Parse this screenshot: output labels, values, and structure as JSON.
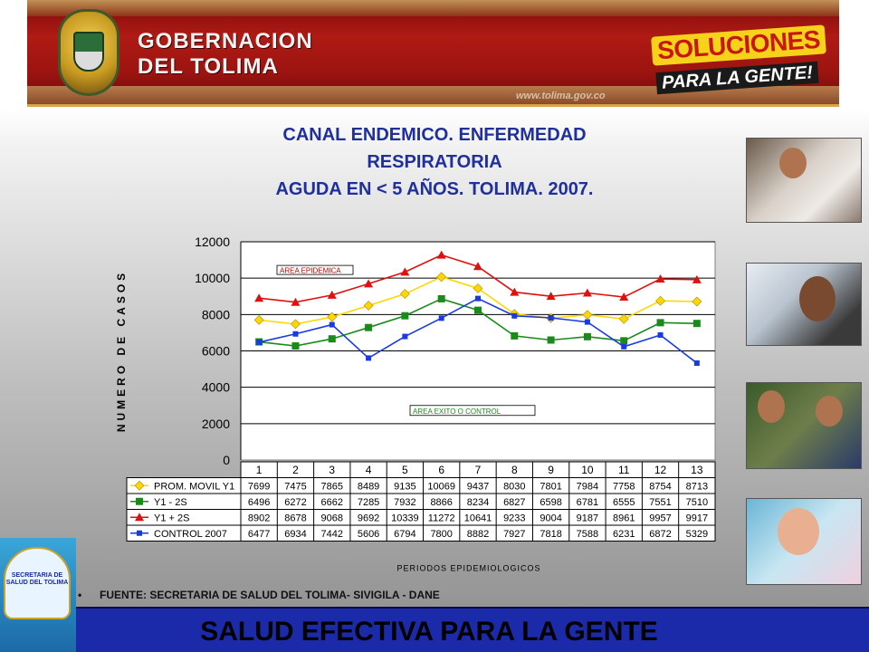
{
  "header": {
    "brand_line1": "GOBERNACION",
    "brand_line2": "DEL TOLIMA",
    "url": "www.tolima.gov.co",
    "slogan_title": "SOLUCIONES",
    "slogan_sub": "PARA LA GENTE!"
  },
  "title_lines": [
    "CANAL ENDEMICO. ENFERMEDAD",
    "RESPIRATORIA",
    "AGUDA EN < 5 AÑOS. TOLIMA. 2007."
  ],
  "source_note": "FUENTE: SECRETARIA DE SALUD DEL TOLIMA- SIVIGILA - DANE",
  "footer_text": "SALUD EFECTIVA PARA LA GENTE",
  "logo_text": "SECRETARIA DE SALUD DEL TOLIMA",
  "colors": {
    "title": "#1f2f9c",
    "footer_bg": "#1a2aa8",
    "header_bg": "#a8160f"
  },
  "chart_data": {
    "type": "line",
    "xlabel": "PERIODOS EPIDEMIOLOGICOS",
    "ylabel": "NUMERO DE CASOS",
    "ylim": [
      0,
      12000
    ],
    "yticks": [
      0,
      2000,
      4000,
      6000,
      8000,
      10000,
      12000
    ],
    "grid": true,
    "categories": [
      "1",
      "2",
      "3",
      "4",
      "5",
      "6",
      "7",
      "8",
      "9",
      "10",
      "11",
      "12",
      "13"
    ],
    "annotations": [
      "AREA EPIDEMICA",
      "AREA EXITO O CONTROL"
    ],
    "series": [
      {
        "name": "PROM. MOVIL Y1",
        "color": "#ffd700",
        "marker": "diamond",
        "values": [
          7699,
          7475,
          7865,
          8489,
          9135,
          10069,
          9437,
          8030,
          7801,
          7984,
          7758,
          8754,
          8713
        ]
      },
      {
        "name": "Y1 - 2S",
        "color": "#1a8a1a",
        "marker": "square",
        "values": [
          6496,
          6272,
          6662,
          7285,
          7932,
          8866,
          8234,
          6827,
          6598,
          6781,
          6555,
          7551,
          7510
        ]
      },
      {
        "name": "Y1 + 2S",
        "color": "#e01010",
        "marker": "triangle",
        "values": [
          8902,
          8678,
          9068,
          9692,
          10339,
          11272,
          10641,
          9233,
          9004,
          9187,
          8961,
          9957,
          9917
        ]
      },
      {
        "name": "CONTROL 2007",
        "color": "#1a3ae0",
        "marker": "square-small",
        "values": [
          6477,
          6934,
          7442,
          5606,
          6794,
          7800,
          8882,
          7927,
          7818,
          7588,
          6231,
          6872,
          5329
        ]
      }
    ]
  }
}
